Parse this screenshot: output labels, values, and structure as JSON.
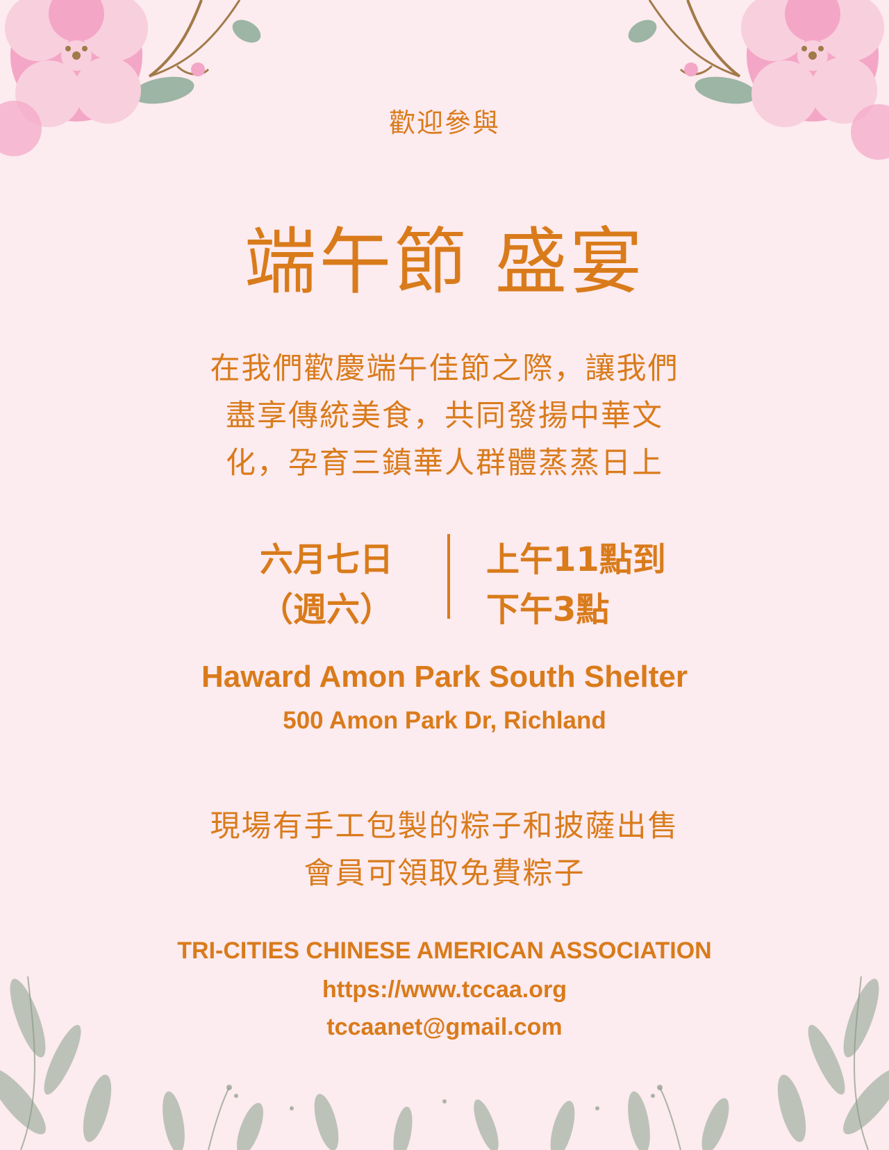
{
  "colors": {
    "background": "#fcebef",
    "text": "#d97b1b",
    "flower_pink": "#f4a6c6",
    "flower_light": "#f8cfdd",
    "leaf_green": "#9cb5a4",
    "branch_brown": "#a07a48",
    "foliage_gray_green": "#a9b5a6"
  },
  "icons": {
    "top_left": "cherry-blossom-branch-icon",
    "top_right": "cherry-blossom-branch-icon",
    "bottom": "leafy-foliage-icon"
  },
  "flyer": {
    "welcome": "歡迎參與",
    "title": "端午節 盛宴",
    "intro_lines": [
      "在我們歡慶端午佳節之際，讓我們",
      "盡享傳統美食，共同發揚中華文",
      "化，孕育三鎮華人群體蒸蒸日上"
    ],
    "date_lines": [
      "六月七日",
      "（週六）"
    ],
    "time_lines": [
      "上午11點到",
      "下午3點"
    ],
    "venue": "Haward Amon Park South Shelter",
    "address": "500 Amon Park Dr, Richland",
    "notes_lines": [
      "現場有手工包製的粽子和披薩出售",
      "會員可領取免費粽子"
    ],
    "organization": "TRI-CITIES CHINESE AMERICAN ASSOCIATION",
    "website": "https://www.tccaa.org",
    "email": "tccaanet@gmail.com"
  }
}
